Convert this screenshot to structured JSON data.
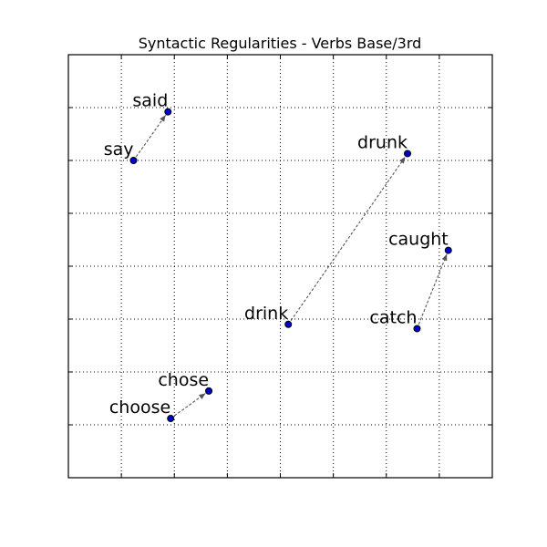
{
  "chart_data": {
    "type": "scatter",
    "title": "Syntactic Regularities - Verbs Base/3rd",
    "xlabel": "",
    "ylabel": "",
    "xlim": [
      0,
      8
    ],
    "ylim": [
      0,
      8
    ],
    "grid": true,
    "tick_labels_visible": false,
    "colors": {
      "point": "#0000cc",
      "arrow": "#555555"
    },
    "points": [
      {
        "label": "say",
        "x": 1.23,
        "y": 6.0
      },
      {
        "label": "said",
        "x": 1.88,
        "y": 6.92
      },
      {
        "label": "drink",
        "x": 4.15,
        "y": 2.9
      },
      {
        "label": "drunk",
        "x": 6.4,
        "y": 6.13
      },
      {
        "label": "catch",
        "x": 6.58,
        "y": 2.82
      },
      {
        "label": "caught",
        "x": 7.17,
        "y": 4.3
      },
      {
        "label": "choose",
        "x": 1.93,
        "y": 1.12
      },
      {
        "label": "chose",
        "x": 2.65,
        "y": 1.64
      }
    ],
    "arrows": [
      {
        "from": "say",
        "to": "said"
      },
      {
        "from": "drink",
        "to": "drunk"
      },
      {
        "from": "catch",
        "to": "caught"
      },
      {
        "from": "choose",
        "to": "chose"
      }
    ]
  }
}
